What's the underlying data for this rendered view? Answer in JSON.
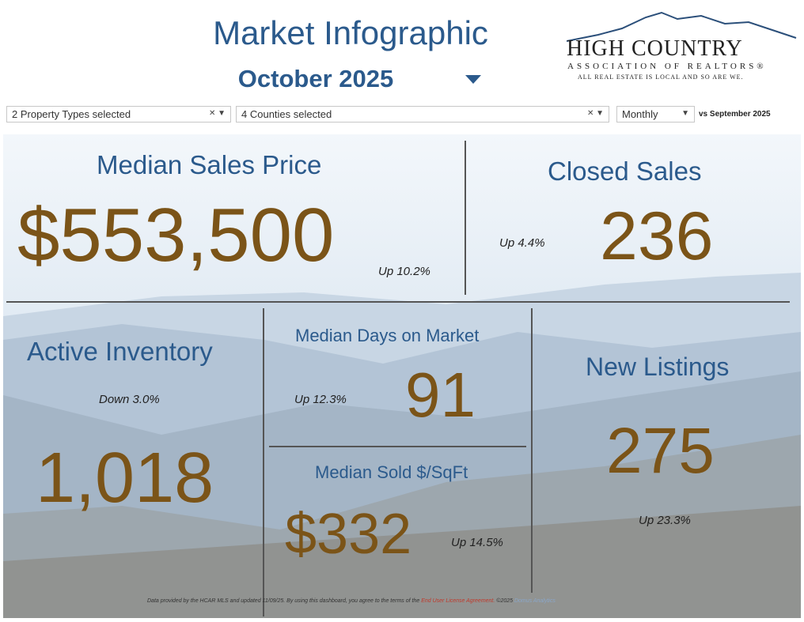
{
  "header": {
    "title": "Market Infographic",
    "subtitle": "October 2025"
  },
  "logo": {
    "name": "HIGH COUNTRY",
    "org": "ASSOCIATION OF REALTORS®",
    "tagline": "ALL REAL ESTATE IS LOCAL AND SO ARE WE."
  },
  "filters": {
    "property_types": "2 Property Types selected",
    "counties": "4 Counties selected",
    "period": "Monthly",
    "comparison": "vs September 2025"
  },
  "tiles": [
    {
      "label": "Median Sales Price",
      "value": "$553,500",
      "change": "Up 10.2%"
    },
    {
      "label": "Closed Sales",
      "value": "236",
      "change": "Up 4.4%"
    },
    {
      "label": "Active Inventory",
      "value": "1,018",
      "change": "Down 3.0%"
    },
    {
      "label": "Median Days on Market",
      "value": "91",
      "change": "Up 12.3%"
    },
    {
      "label": "Median Sold $/SqFt",
      "value": "$332",
      "change": "Up 14.5%"
    },
    {
      "label": "New Listings",
      "value": "275",
      "change": "Up 23.3%"
    }
  ],
  "footer": {
    "note": "Data provided by the HCAR MLS and updated 11/09/25.  By using this dashboard, you agree to the terms of the",
    "link": "End User License Agreement.",
    "copyright": "©2025",
    "credit": "Domus Analytics"
  }
}
